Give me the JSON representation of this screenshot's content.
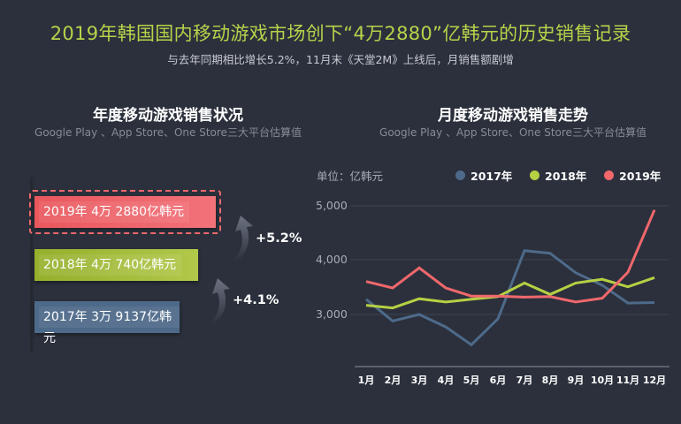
{
  "header": {
    "title": "2019年韩国国内移动游戏市场创下“4万2880”亿韩元的历史销售记录",
    "subtitle": "与去年同期相比增长5.2%，11月末《天堂2M》上线后，月销售额剧增"
  },
  "left_panel": {
    "title": "年度移动游戏销售状况",
    "source": "Google Play 、App Store、One Store三大平台估算值",
    "bars": [
      {
        "year": "2019",
        "label": "2019年 4万 2880亿韩元",
        "value": 42880,
        "color": "#f0686c",
        "highlight": true
      },
      {
        "year": "2018",
        "label": "2018年 4万 740亿韩元",
        "value": 40740,
        "color": "#a8c23c"
      },
      {
        "year": "2017",
        "label": "2017年 3万 9137亿韩元",
        "value": 39137,
        "color": "#4e6a8a"
      }
    ],
    "growth": [
      {
        "label": "+5.2%",
        "from": "2018",
        "to": "2019"
      },
      {
        "label": "+4.1%",
        "from": "2017",
        "to": "2018"
      }
    ]
  },
  "right_panel": {
    "title": "月度移动游戏销售走势",
    "source": "Google Play 、App Store、One Store三大平台估算值",
    "unit": "单位：亿韩元",
    "legend": [
      {
        "label": "2017年",
        "color": "#4e6a8a"
      },
      {
        "label": "2018年",
        "color": "#b6d043"
      },
      {
        "label": "2019年",
        "color": "#f0686c"
      }
    ],
    "y_ticks": [
      "5,000",
      "4,000",
      "3,000"
    ],
    "months": [
      "1月",
      "2月",
      "3月",
      "4月",
      "5月",
      "6月",
      "7月",
      "8月",
      "9月",
      "10月",
      "11月",
      "12月"
    ]
  },
  "chart_data": [
    {
      "type": "bar",
      "title": "年度移动游戏销售状况",
      "subtitle": "Google Play 、App Store、One Store三大平台估算值",
      "orientation": "horizontal",
      "categories": [
        "2019年",
        "2018年",
        "2017年"
      ],
      "values": [
        42880,
        40740,
        39137
      ],
      "unit": "亿韩元",
      "annotations": [
        "+5.2% (2018→2019)",
        "+4.1% (2017→2018)"
      ]
    },
    {
      "type": "line",
      "title": "月度移动游戏销售走势",
      "subtitle": "Google Play 、App Store、One Store三大平台估算值",
      "ylabel": "单位：亿韩元",
      "categories": [
        "1月",
        "2月",
        "3月",
        "4月",
        "5月",
        "6月",
        "7月",
        "8月",
        "9月",
        "10月",
        "11月",
        "12月"
      ],
      "series": [
        {
          "name": "2017年",
          "color": "#4e6a8a",
          "values": [
            3280,
            2880,
            3000,
            2770,
            2440,
            2920,
            4180,
            4130,
            3770,
            3540,
            3210,
            3220
          ]
        },
        {
          "name": "2018年",
          "color": "#b6d043",
          "values": [
            3170,
            3120,
            3290,
            3230,
            3280,
            3330,
            3580,
            3370,
            3580,
            3650,
            3510,
            3680
          ]
        },
        {
          "name": "2019年",
          "color": "#f0686c",
          "values": [
            3608,
            3490,
            3860,
            3490,
            3340,
            3340,
            3320,
            3330,
            3230,
            3300,
            3780,
            4930
          ]
        }
      ],
      "y_ticks": [
        3000,
        4000,
        5000
      ],
      "ylim": [
        2200,
        5200
      ],
      "grid": true,
      "legend_position": "top"
    }
  ]
}
